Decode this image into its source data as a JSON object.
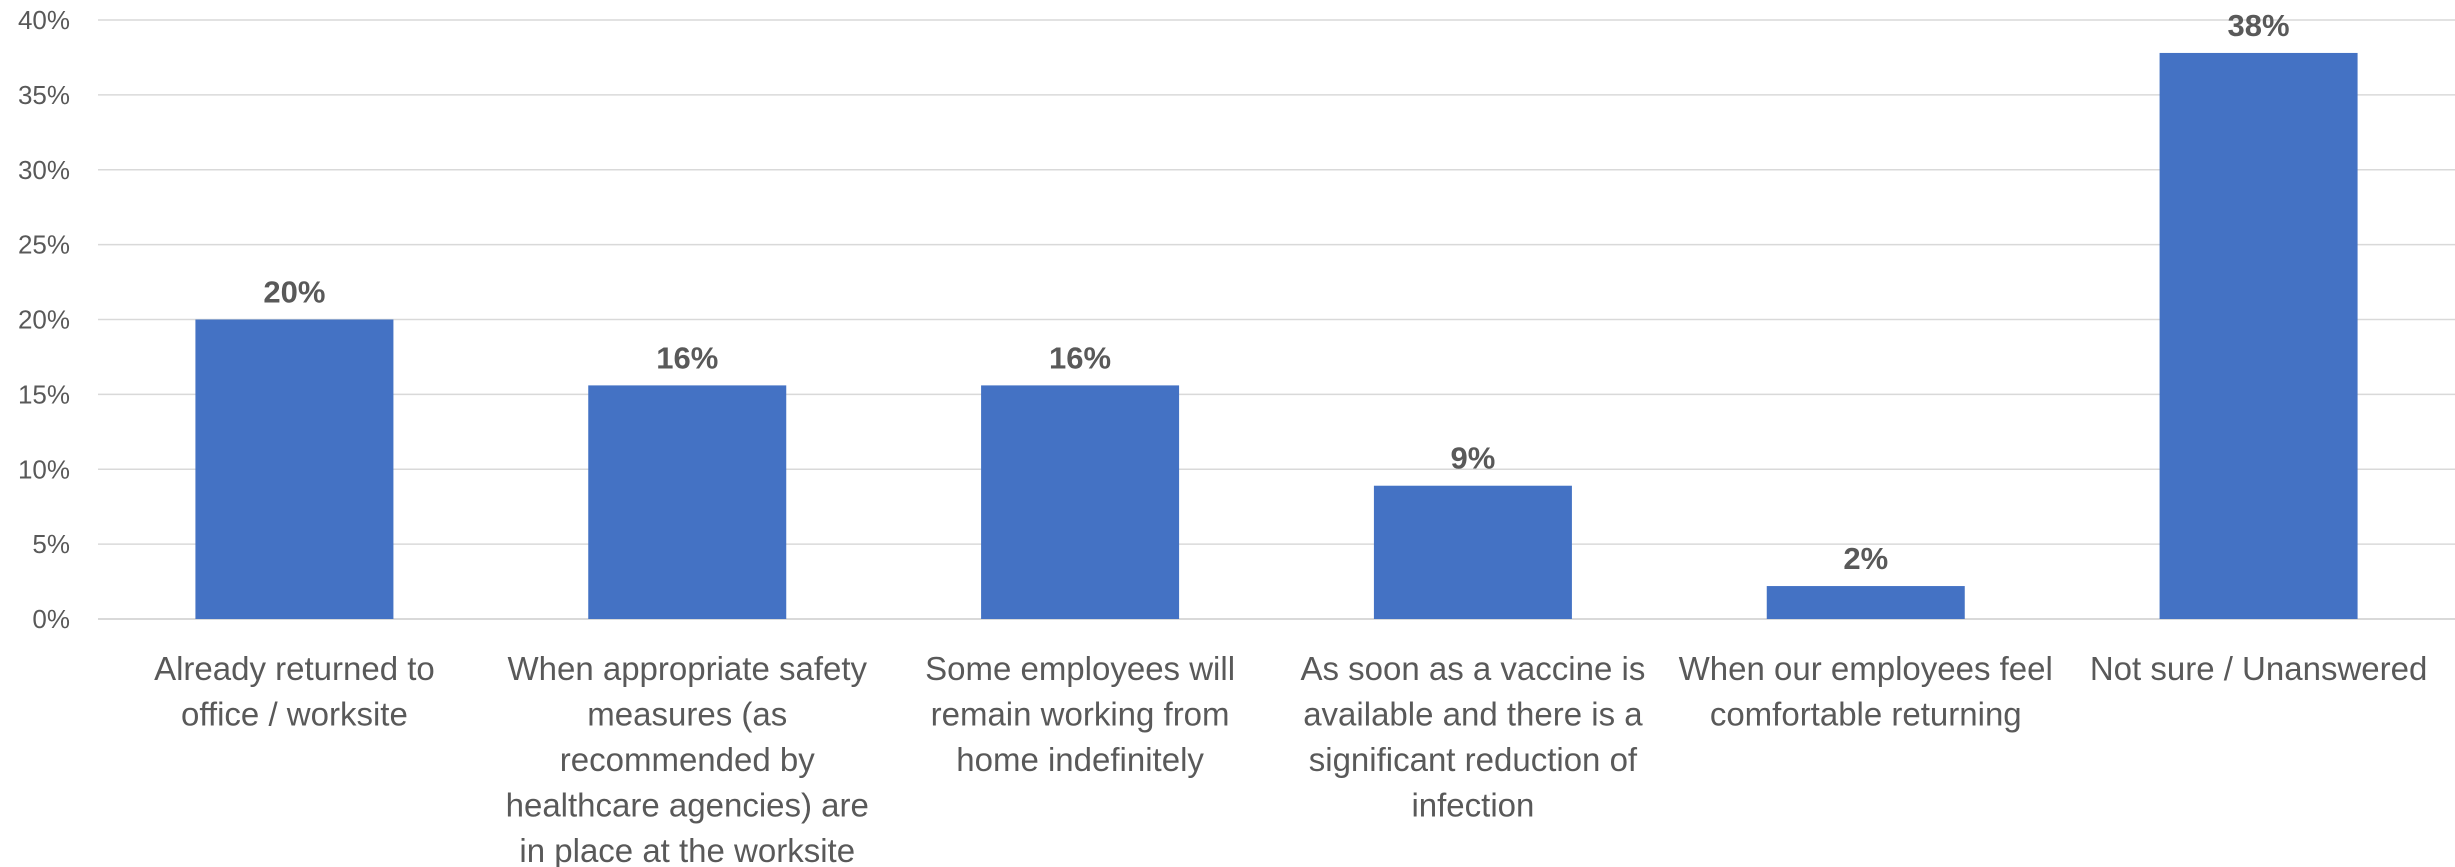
{
  "chart_data": {
    "type": "bar",
    "title": "",
    "xlabel": "",
    "ylabel": "",
    "categories": [
      [
        "Already returned to",
        "office / worksite"
      ],
      [
        "When appropriate safety",
        "measures (as",
        "recommended by",
        "healthcare agencies) are",
        "in place at the worksite"
      ],
      [
        "Some employees will",
        "remain working from",
        "home indefinitely"
      ],
      [
        "As soon as a vaccine is",
        "available and there is a",
        "significant reduction of",
        "infection"
      ],
      [
        "When our employees feel",
        "comfortable returning"
      ],
      [
        "Not sure / Unanswered"
      ]
    ],
    "values": [
      20,
      15.6,
      15.6,
      8.9,
      2.2,
      37.8
    ],
    "data_labels": [
      "20%",
      "16%",
      "16%",
      "9%",
      "2%",
      "38%"
    ],
    "ylim": [
      0,
      40
    ],
    "yticks": [
      0,
      5,
      10,
      15,
      20,
      25,
      30,
      35,
      40
    ],
    "ytick_labels": [
      "0%",
      "5%",
      "10%",
      "15%",
      "20%",
      "25%",
      "30%",
      "35%",
      "40%"
    ],
    "grid": true,
    "legend": "none",
    "colors": {
      "bar": "#4472c4",
      "text": "#595959",
      "grid": "#d9d9d9"
    }
  }
}
